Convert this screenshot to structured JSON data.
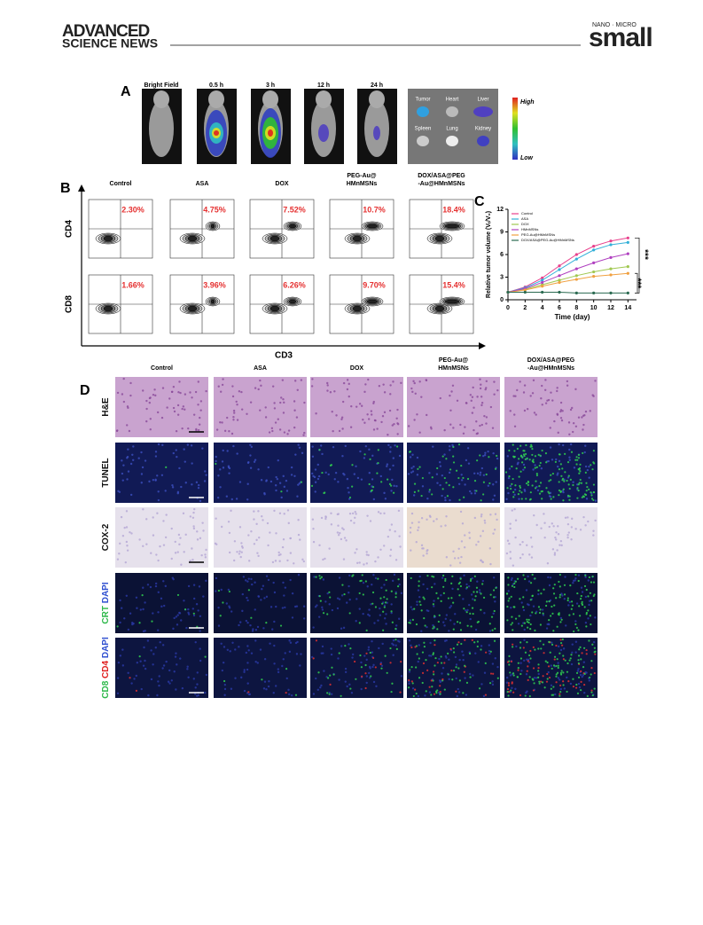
{
  "header": {
    "brand_line1": "ADVANCED",
    "brand_line2": "SCIENCE NEWS",
    "journal_tag": "NANO · MICRO",
    "journal": "small"
  },
  "panel_a": {
    "label": "A",
    "timepoints": [
      "Bright Field",
      "0.5 h",
      "3 h",
      "12 h",
      "24 h"
    ],
    "organs": [
      "Tumor",
      "Heart",
      "Liver",
      "Spleen",
      "Lung",
      "Kidney"
    ],
    "scale_high": "High",
    "scale_low": "Low"
  },
  "panel_b": {
    "label": "B",
    "groups": [
      [
        "Control"
      ],
      [
        "ASA"
      ],
      [
        "DOX"
      ],
      [
        "PEG-Au@",
        "HMnMSNs"
      ],
      [
        "DOX/ASA@PEG",
        "-Au@HMnMSNs"
      ]
    ],
    "rows": [
      {
        "label": "CD4",
        "percentages": [
          "2.30%",
          "4.75%",
          "7.52%",
          "10.7%",
          "18.4%"
        ]
      },
      {
        "label": "CD8",
        "percentages": [
          "1.66%",
          "3.96%",
          "6.26%",
          "9.70%",
          "15.4%"
        ]
      }
    ],
    "x_label": "CD3"
  },
  "panel_c": {
    "label": "C"
  },
  "chart_data": {
    "type": "line",
    "xlabel": "Time (day)",
    "ylabel": "Relative tumor volume (Vₜ/V₀)",
    "x": [
      0,
      2,
      4,
      6,
      8,
      10,
      12,
      14
    ],
    "xlim": [
      0,
      15
    ],
    "xticks": [
      0,
      2,
      4,
      6,
      8,
      10,
      12,
      14
    ],
    "ylim": [
      0,
      12
    ],
    "yticks": [
      0,
      3,
      6,
      9,
      12
    ],
    "series": [
      {
        "name": "Control",
        "color": "#e8408c",
        "values": [
          1,
          1.7,
          2.9,
          4.5,
          6.0,
          7.1,
          7.8,
          8.2
        ]
      },
      {
        "name": "ASA",
        "color": "#33b0d8",
        "values": [
          1,
          1.6,
          2.6,
          4.0,
          5.4,
          6.6,
          7.3,
          7.6
        ]
      },
      {
        "name": "DOX",
        "color": "#a0c850",
        "values": [
          1,
          1.4,
          2.0,
          2.6,
          3.2,
          3.7,
          4.1,
          4.4
        ]
      },
      {
        "name": "HMnMSNs",
        "color": "#b040c0",
        "values": [
          1,
          1.5,
          2.3,
          3.2,
          4.1,
          4.9,
          5.6,
          6.1
        ]
      },
      {
        "name": "PEG-Au@HMnMSNs",
        "color": "#f0a040",
        "values": [
          1,
          1.3,
          1.8,
          2.3,
          2.7,
          3.1,
          3.3,
          3.5
        ]
      },
      {
        "name": "DOX/ASA@PEG-Au@HMnMSNs",
        "color": "#2a6a50",
        "values": [
          1,
          1.0,
          1.0,
          1.0,
          0.9,
          0.9,
          0.9,
          0.9
        ]
      }
    ],
    "annotations": [
      "***",
      "***"
    ]
  },
  "panel_d": {
    "label": "D",
    "groups": [
      [
        "Control"
      ],
      [
        "ASA"
      ],
      [
        "DOX"
      ],
      [
        "PEG-Au@",
        "HMnMSNs"
      ],
      [
        "DOX/ASA@PEG",
        "-Au@HMnMSNs"
      ]
    ],
    "rows": [
      [
        {
          "text": "H&E",
          "color": "#111111"
        }
      ],
      [
        {
          "text": "TUNEL",
          "color": "#111111"
        }
      ],
      [
        {
          "text": "COX-2",
          "color": "#111111"
        }
      ],
      [
        {
          "text": "CRT",
          "color": "#2db84a"
        },
        {
          "text": "DAPI",
          "color": "#3050d0"
        }
      ],
      [
        {
          "text": "CD8",
          "color": "#2db84a"
        },
        {
          "text": "CD4",
          "color": "#e02020"
        },
        {
          "text": "DAPI",
          "color": "#3050d0"
        }
      ]
    ]
  }
}
